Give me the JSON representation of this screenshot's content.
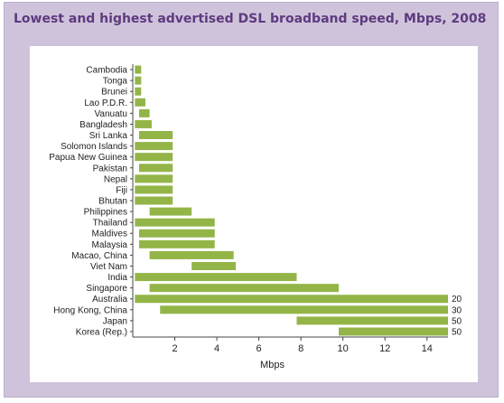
{
  "chart_data": {
    "type": "bar",
    "subtype": "floating-range-horizontal",
    "title": "Lowest and highest advertised DSL broadband speed, Mbps, 2008",
    "xlabel": "Mbps",
    "xlim": [
      0,
      15
    ],
    "xticks": [
      2,
      4,
      6,
      8,
      10,
      12,
      14
    ],
    "bar_color": "#93b548",
    "grid": false,
    "categories": [
      "Cambodia",
      "Tonga",
      "Brunei",
      "Lao P.D.R.",
      "Vanuatu",
      "Bangladesh",
      "Sri Lanka",
      "Solomon Islands",
      "Papua New Guinea",
      "Pakistan",
      "Nepal",
      "Fiji",
      "Bhutan",
      "Philippines",
      "Thailand",
      "Maldives",
      "Malaysia",
      "Macao, China",
      "Viet Nam",
      "India",
      "Singapore",
      "Australia",
      "Hong Kong, China",
      "Japan",
      "Korea (Rep.)"
    ],
    "low": [
      0.1,
      0.1,
      0.1,
      0.1,
      0.3,
      0.1,
      0.3,
      0.1,
      0.1,
      0.3,
      0.1,
      0.1,
      0.1,
      0.8,
      0.1,
      0.3,
      0.3,
      0.8,
      2.8,
      0.1,
      0.8,
      0.1,
      1.3,
      7.8,
      9.8
    ],
    "high": [
      0.4,
      0.4,
      0.4,
      0.6,
      0.8,
      0.9,
      1.9,
      1.9,
      1.9,
      1.9,
      1.9,
      1.9,
      1.9,
      2.8,
      3.9,
      3.9,
      3.9,
      4.8,
      4.9,
      7.8,
      9.8,
      20,
      30,
      50,
      50
    ],
    "overflow_labels": {
      "Australia": "20",
      "Hong Kong, China": "30",
      "Japan": "50",
      "Korea (Rep.)": "50"
    }
  }
}
